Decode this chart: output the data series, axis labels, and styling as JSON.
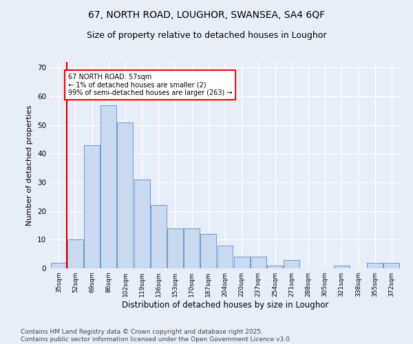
{
  "title1": "67, NORTH ROAD, LOUGHOR, SWANSEA, SA4 6QF",
  "title2": "Size of property relative to detached houses in Loughor",
  "xlabel": "Distribution of detached houses by size in Loughor",
  "ylabel": "Number of detached properties",
  "bins": [
    "35sqm",
    "52sqm",
    "69sqm",
    "86sqm",
    "102sqm",
    "119sqm",
    "136sqm",
    "153sqm",
    "170sqm",
    "187sqm",
    "204sqm",
    "220sqm",
    "237sqm",
    "254sqm",
    "271sqm",
    "288sqm",
    "305sqm",
    "321sqm",
    "338sqm",
    "355sqm",
    "372sqm"
  ],
  "values": [
    2,
    10,
    43,
    57,
    51,
    31,
    22,
    14,
    14,
    12,
    8,
    4,
    4,
    1,
    3,
    0,
    0,
    1,
    0,
    2,
    2
  ],
  "bar_color": "#c9d9f0",
  "bar_edge_color": "#5b8cc8",
  "vline_x": 0.5,
  "vline_color": "#cc0000",
  "annotation_box_text": "67 NORTH ROAD: 57sqm\n← 1% of detached houses are smaller (2)\n99% of semi-detached houses are larger (263) →",
  "ylim": [
    0,
    72
  ],
  "yticks": [
    0,
    10,
    20,
    30,
    40,
    50,
    60,
    70
  ],
  "bg_color": "#e8eef8",
  "plot_bg_color": "#e8eef8",
  "footer": "Contains HM Land Registry data © Crown copyright and database right 2025.\nContains public sector information licensed under the Open Government Licence v3.0.",
  "title1_fontsize": 10,
  "title2_fontsize": 9,
  "xlabel_fontsize": 8.5,
  "ylabel_fontsize": 8,
  "footer_fontsize": 6.5
}
